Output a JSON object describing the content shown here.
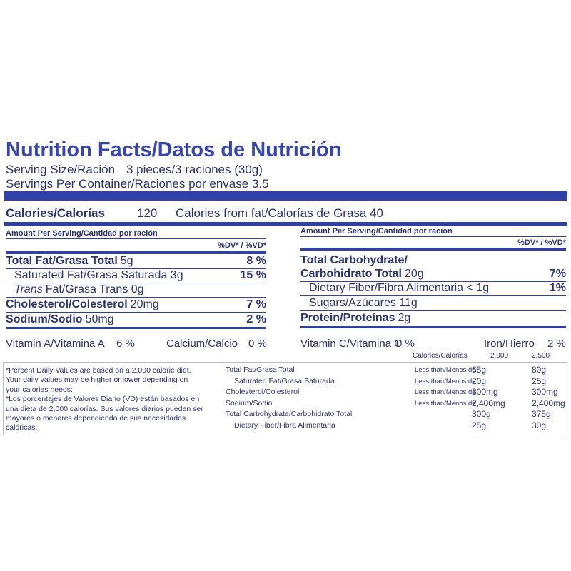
{
  "title": "Nutrition Facts/Datos de Nutrición",
  "serving_size": {
    "label": "Serving Size/Ración",
    "value": "3 pieces/3 raciones (30g)"
  },
  "servings_per_container": "Servings Per Container/Raciones por envase 3.5",
  "calories": {
    "label": "Calories/Calorías",
    "value": "120",
    "from_fat": "Calories from fat/Calorías de Grasa 40"
  },
  "left": {
    "header": "Amount Per Serving/Cantidad por ración",
    "dv_header": "%DV* / %VD*",
    "rows": [
      {
        "name": "Total Fat/Grasa Total",
        "amount": "5g",
        "dv": "8 %",
        "bold": true
      },
      {
        "name": "Saturated Fat/Grasa Saturada 3g",
        "dv": "15 %",
        "indent": true
      },
      {
        "italic": "Trans",
        "name": "Fat/Grasa Trans 0g",
        "indent": true
      },
      {
        "name": "Cholesterol/Colesterol",
        "amount": "20mg",
        "dv": "7 %",
        "bold": true
      },
      {
        "name": "Sodium/Sodio",
        "amount": "50mg",
        "dv": "2 %",
        "bold": true
      }
    ]
  },
  "right": {
    "header": "Amount Per Serving/Cantidad por ración",
    "dv_header": "%DV* / %VD*",
    "rows": [
      {
        "name": "Total Carbohydrate/",
        "bold": true
      },
      {
        "name": "Carbohidrato Total",
        "amount": "20g",
        "dv": "7%",
        "bold": true
      },
      {
        "name": "Dietary Fiber/Fibra Alimentaria < 1g",
        "dv": "1%",
        "indent": true
      },
      {
        "name": "Sugars/Azúcares 11g",
        "indent": true
      },
      {
        "name": "Protein/Proteínas",
        "amount": "2g",
        "bold": true
      }
    ]
  },
  "vitamins": [
    {
      "name": "Vitamin A/Vitamina A",
      "value": "6 %"
    },
    {
      "name": "Calcium/Calcio",
      "value": "0 %"
    },
    {
      "name": "Vitamin C/Vitamina C",
      "value": "0 %"
    },
    {
      "name": "Iron/Hierro",
      "value": "2 %"
    }
  ],
  "footnote": [
    "*Percent Daily Values are based on a 2,000 calorie diet.",
    "Your daily values may be higher or lower depending on",
    "your calories needs:",
    "*Los porcentajes de Valores Diario (VD) están basados en",
    "una dieta de 2,000 calorías. Sus valores diarios pueden ser",
    "mayores o menores dependiendo de sus necesidades",
    "calóricas:"
  ],
  "dv_table": {
    "header": [
      "Calories/Calorías",
      "2,000",
      "2,500"
    ],
    "rows": [
      {
        "nutrient": "Total Fat/Grasa Total",
        "comparator": "Less than/Menos de",
        "v2000": "65g",
        "v2500": "80g"
      },
      {
        "nutrient": "Saturated Fat/Grasa Saturada",
        "comparator": "Less than/Menos de",
        "v2000": "20g",
        "v2500": "25g",
        "indent": true
      },
      {
        "nutrient": "Cholesterol/Colesterol",
        "comparator": "Less than/Menos de",
        "v2000": "300mg",
        "v2500": "300mg"
      },
      {
        "nutrient": "Sodium/Sodio",
        "comparator": "Less than/Menos de",
        "v2000": "2,400mg",
        "v2500": "2,400mg"
      },
      {
        "nutrient": "Total Carbohydrate/Carbohidrato Total",
        "v2000": "300g",
        "v2500": "375g"
      },
      {
        "nutrient": "Dietary Fiber/Fibra Alimentaria",
        "v2000": "25g",
        "v2500": "30g",
        "indent": true
      }
    ]
  }
}
